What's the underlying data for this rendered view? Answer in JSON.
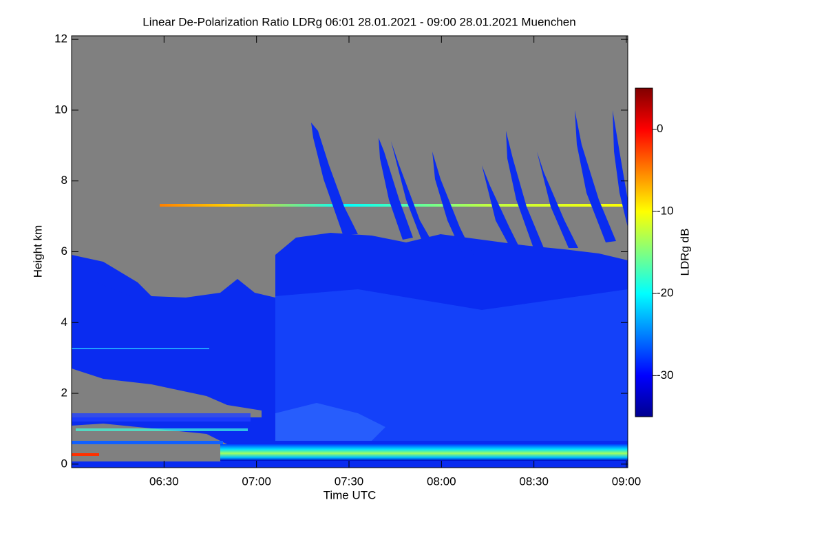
{
  "chart_data": {
    "type": "heatmap",
    "title": "Linear De-Polarization Ratio LDRg   06:01 28.01.2021 - 09:00 28.01.2021 Muenchen",
    "x_label": "Time UTC",
    "y_label": "Height km",
    "colorbar_label": "LDRg dB",
    "xlim": [
      6.0,
      9.0
    ],
    "xticks": [
      {
        "value": 6.5,
        "label": "06:30"
      },
      {
        "value": 7.0,
        "label": "07:00"
      },
      {
        "value": 7.5,
        "label": "07:30"
      },
      {
        "value": 8.0,
        "label": "08:00"
      },
      {
        "value": 8.5,
        "label": "08:30"
      },
      {
        "value": 9.0,
        "label": "09:00"
      }
    ],
    "ylim": [
      -0.1,
      12.1
    ],
    "yticks": [
      0,
      2,
      4,
      6,
      8,
      10,
      12
    ],
    "zlim": [
      -35,
      5
    ],
    "zticks": [
      0,
      -10,
      -20,
      -30
    ],
    "colormap": [
      "#00008f",
      "#0000ff",
      "#0080ff",
      "#00ffff",
      "#80ff80",
      "#ffff00",
      "#ff8000",
      "#ff0000",
      "#800000"
    ]
  }
}
